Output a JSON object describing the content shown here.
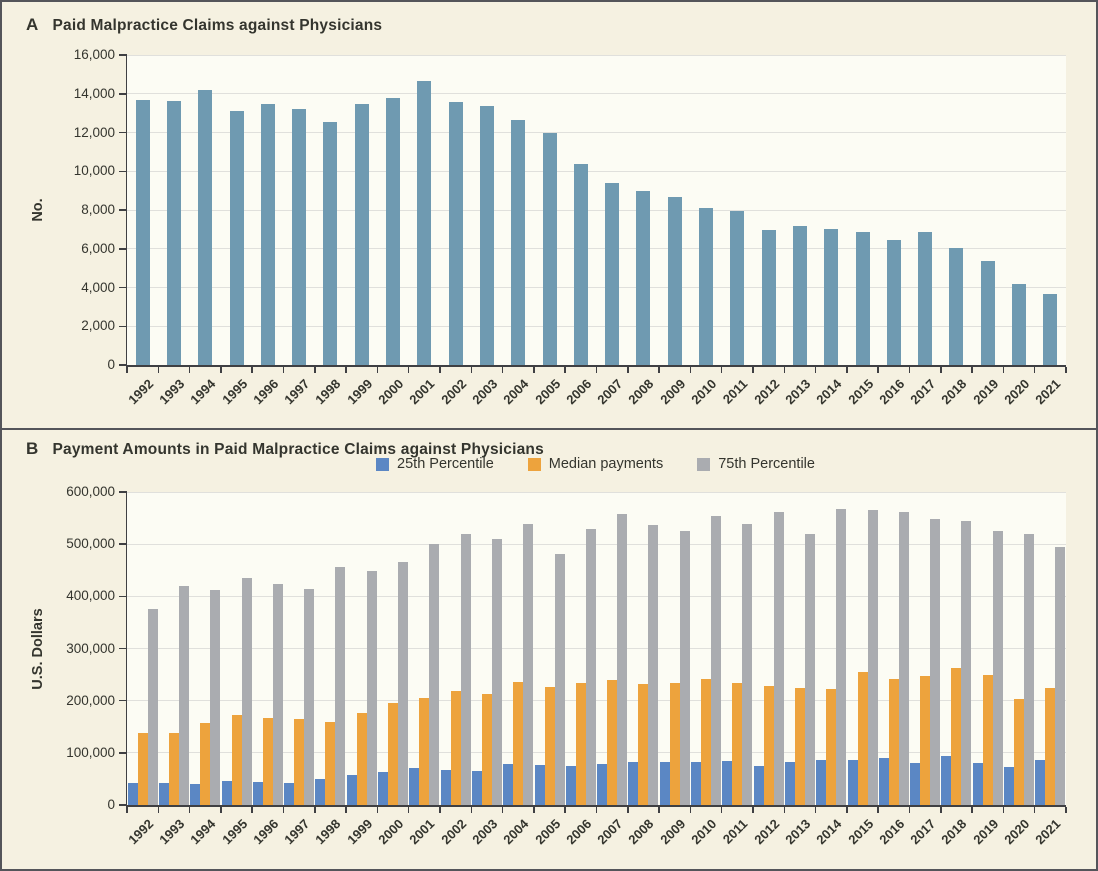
{
  "figure": {
    "border_color": "#54555a",
    "background": "#f5f1e1",
    "plot_background": "#fcfcf4",
    "grid_color": "#e0e0dc",
    "axis_color": "#3f4043",
    "text_color": "#34352e"
  },
  "colors": {
    "claims": "#6f9ab1",
    "percentile_25": "#5b87c4",
    "median": "#eda33d",
    "percentile_75": "#aaacb0"
  },
  "chart_data": [
    {
      "type": "bar",
      "panel_label": "A",
      "title": "Paid Malpractice Claims against Physicians",
      "xlabel": "",
      "ylabel": "No.",
      "ylim": [
        0,
        16000
      ],
      "ytick_step": 2000,
      "grid": true,
      "legend_position": "none",
      "categories": [
        "1992",
        "1993",
        "1994",
        "1995",
        "1996",
        "1997",
        "1998",
        "1999",
        "2000",
        "2001",
        "2002",
        "2003",
        "2004",
        "2005",
        "2006",
        "2007",
        "2008",
        "2009",
        "2010",
        "2011",
        "2012",
        "2013",
        "2014",
        "2015",
        "2016",
        "2017",
        "2018",
        "2019",
        "2020",
        "2021"
      ],
      "values": [
        13700,
        13650,
        14200,
        13100,
        13450,
        13200,
        12550,
        13450,
        13800,
        14650,
        13550,
        13350,
        12650,
        12000,
        10400,
        9400,
        9000,
        8650,
        8100,
        7950,
        6950,
        7200,
        7000,
        6850,
        6450,
        6850,
        6050,
        5350,
        4200,
        3650
      ]
    },
    {
      "type": "bar",
      "panel_label": "B",
      "title": "Payment Amounts in Paid Malpractice Claims against Physicians",
      "xlabel": "",
      "ylabel": "U.S. Dollars",
      "ylim": [
        0,
        600000
      ],
      "ytick_step": 100000,
      "grid": true,
      "legend_position": "top-center",
      "categories": [
        "1992",
        "1993",
        "1994",
        "1995",
        "1996",
        "1997",
        "1998",
        "1999",
        "2000",
        "2001",
        "2002",
        "2003",
        "2004",
        "2005",
        "2006",
        "2007",
        "2008",
        "2009",
        "2010",
        "2011",
        "2012",
        "2013",
        "2014",
        "2015",
        "2016",
        "2017",
        "2018",
        "2019",
        "2020",
        "2021"
      ],
      "series": [
        {
          "name": "25th Percentile",
          "color_key": "percentile_25",
          "values": [
            42000,
            42000,
            41000,
            46000,
            45000,
            43000,
            50000,
            57000,
            63000,
            70000,
            68000,
            66000,
            79000,
            76000,
            74000,
            79000,
            82000,
            82000,
            82000,
            85000,
            75000,
            82000,
            87000,
            86000,
            91000,
            80000,
            93000,
            81000,
            73000,
            86000
          ]
        },
        {
          "name": "Median payments",
          "color_key": "median",
          "values": [
            138000,
            138000,
            158000,
            172000,
            167000,
            164000,
            160000,
            177000,
            196000,
            205000,
            218000,
            212000,
            235000,
            227000,
            234000,
            240000,
            232000,
            234000,
            241000,
            234000,
            229000,
            225000,
            223000,
            255000,
            242000,
            248000,
            263000,
            250000,
            203000,
            224000
          ]
        },
        {
          "name": "75th Percentile",
          "color_key": "percentile_75",
          "values": [
            376000,
            420000,
            412000,
            436000,
            423000,
            414000,
            456000,
            448000,
            465000,
            500000,
            520000,
            509000,
            539000,
            481000,
            530000,
            557000,
            536000,
            525000,
            554000,
            538000,
            562000,
            520000,
            568000,
            566000,
            561000,
            548000,
            545000,
            526000,
            520000,
            494000
          ]
        }
      ]
    }
  ]
}
